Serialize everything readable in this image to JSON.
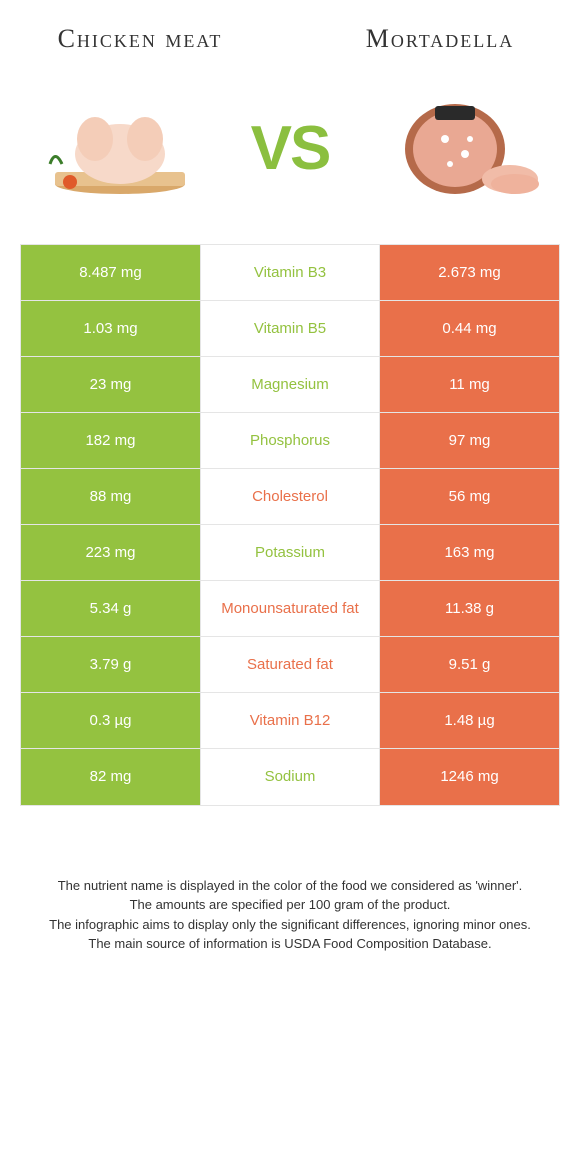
{
  "colors": {
    "green": "#94c240",
    "orange": "#e9704a",
    "row_border": "#e5e5e5",
    "background": "#ffffff",
    "title_text": "#333333",
    "footer_text": "#333333"
  },
  "typography": {
    "title_fontsize": 26,
    "vs_fontsize": 62,
    "cell_fontsize": 15,
    "footer_fontsize": 13
  },
  "header": {
    "left_title": "Chicken meat",
    "right_title": "Mortadella",
    "vs_label": "VS"
  },
  "table": {
    "type": "comparison-table",
    "rows": [
      {
        "nutrient": "Vitamin B3",
        "left": "8.487 mg",
        "right": "2.673 mg",
        "winner": "left"
      },
      {
        "nutrient": "Vitamin B5",
        "left": "1.03 mg",
        "right": "0.44 mg",
        "winner": "left"
      },
      {
        "nutrient": "Magnesium",
        "left": "23 mg",
        "right": "11 mg",
        "winner": "left"
      },
      {
        "nutrient": "Phosphorus",
        "left": "182 mg",
        "right": "97 mg",
        "winner": "left"
      },
      {
        "nutrient": "Cholesterol",
        "left": "88 mg",
        "right": "56 mg",
        "winner": "right"
      },
      {
        "nutrient": "Potassium",
        "left": "223 mg",
        "right": "163 mg",
        "winner": "left"
      },
      {
        "nutrient": "Monounsaturated fat",
        "left": "5.34 g",
        "right": "11.38 g",
        "winner": "right"
      },
      {
        "nutrient": "Saturated fat",
        "left": "3.79 g",
        "right": "9.51 g",
        "winner": "right"
      },
      {
        "nutrient": "Vitamin B12",
        "left": "0.3 µg",
        "right": "1.48 µg",
        "winner": "right"
      },
      {
        "nutrient": "Sodium",
        "left": "82 mg",
        "right": "1246 mg",
        "winner": "left"
      }
    ]
  },
  "footer": {
    "line1": "The nutrient name is displayed in the color of the food we considered as 'winner'.",
    "line2": "The amounts are specified per 100 gram of the product.",
    "line3": "The infographic aims to display only the significant differences, ignoring minor ones.",
    "line4": "The main source of information is USDA Food Composition Database."
  }
}
